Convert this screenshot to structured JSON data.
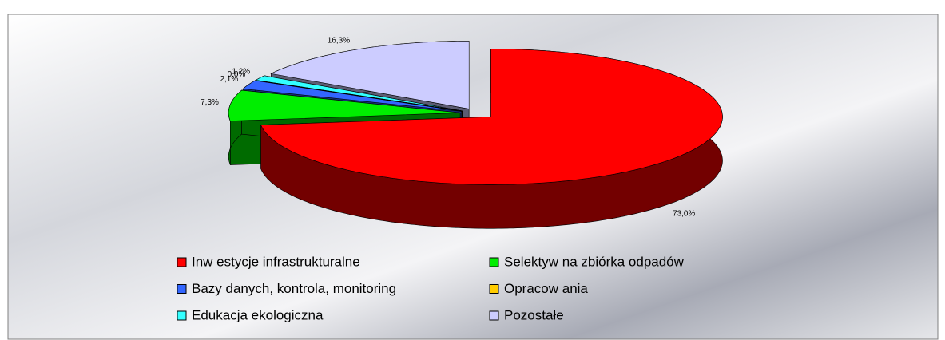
{
  "chart_data": {
    "type": "pie3d",
    "categories": [
      "Inw estycje infrastrukturalne",
      "Selektyw na zbiórka odpadów",
      "Bazy danych, kontrola, monitoring",
      "Opracow ania",
      "Edukacja ekologiczna",
      "Pozostałe"
    ],
    "values": [
      73.0,
      7.3,
      2.1,
      0.0,
      1.2,
      16.3
    ],
    "value_labels": [
      "73,0%",
      "7,3%",
      "2,1%",
      "0,0%",
      "1,2%",
      "16,3%"
    ],
    "colors": [
      "#ff0000",
      "#00ee00",
      "#3366ff",
      "#ffcc00",
      "#33ffff",
      "#ccccff"
    ],
    "legend": "bottom"
  }
}
